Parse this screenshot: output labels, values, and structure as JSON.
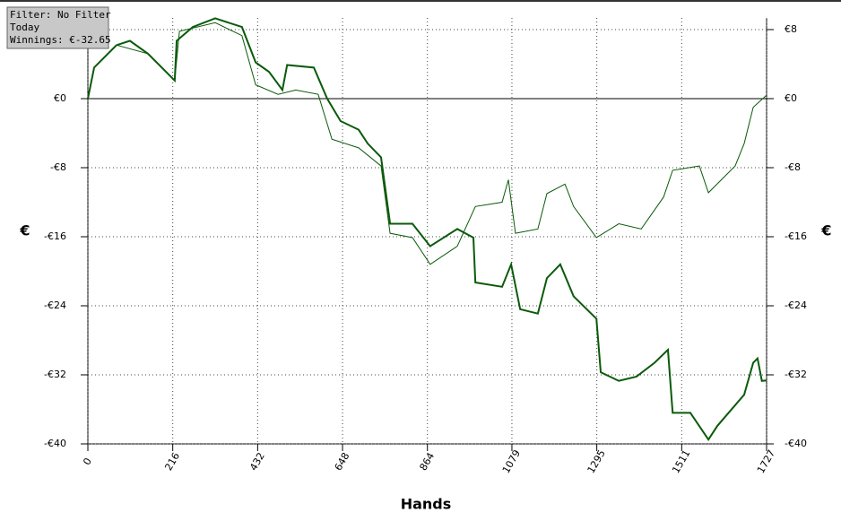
{
  "chart_data": {
    "type": "line",
    "info_box": [
      "Filter: No Filter",
      "Today",
      "Winnings: €-32.65"
    ],
    "xlabel": "Hands",
    "ylabel": "€",
    "xlim": [
      0,
      1727
    ],
    "xticks": [
      0,
      216,
      432,
      648,
      864,
      1079,
      1295,
      1511,
      1727
    ],
    "ylim": [
      -40,
      9.35
    ],
    "yticks": [
      {
        "value": -40,
        "label": "-€40"
      },
      {
        "value": -32,
        "label": "-€32"
      },
      {
        "value": -24,
        "label": "-€24"
      },
      {
        "value": -16,
        "label": "-€16"
      },
      {
        "value": -8,
        "label": "-€8"
      },
      {
        "value": 0,
        "label": "€0"
      },
      {
        "value": 8,
        "label": "€8"
      }
    ],
    "grid": true,
    "series": [
      {
        "color": "#0a5a0a",
        "width": 2,
        "x": [
          0,
          16,
          73,
          107,
          153,
          221,
          226,
          267,
          324,
          392,
          427,
          461,
          495,
          507,
          575,
          609,
          643,
          689,
          712,
          746,
          769,
          826,
          871,
          940,
          981,
          986,
          1054,
          1077,
          1100,
          1145,
          1168,
          1202,
          1236,
          1294,
          1305,
          1351,
          1396,
          1442,
          1476,
          1488,
          1533,
          1579,
          1602,
          1670,
          1693,
          1704,
          1715,
          1727
        ],
        "values": [
          0,
          3.6,
          6.2,
          6.7,
          5.2,
          2.1,
          6.7,
          8.3,
          9.3,
          8.3,
          4.2,
          3.1,
          1.0,
          3.9,
          3.6,
          0,
          -2.6,
          -3.6,
          -5.2,
          -6.8,
          -14.5,
          -14.5,
          -17.1,
          -15.1,
          -16.1,
          -21.3,
          -21.8,
          -19.2,
          -24.4,
          -24.9,
          -20.8,
          -19.2,
          -22.9,
          -25.5,
          -31.7,
          -32.7,
          -32.2,
          -30.6,
          -29.1,
          -36.4,
          -36.4,
          -39.5,
          -37.9,
          -34.3,
          -30.6,
          -30.1,
          -32.7,
          -32.65
        ]
      },
      {
        "color": "#0a5a0a",
        "width": 1,
        "x": [
          0,
          16,
          73,
          153,
          221,
          233,
          324,
          392,
          427,
          484,
          529,
          586,
          621,
          689,
          746,
          769,
          826,
          871,
          940,
          986,
          1054,
          1070,
          1088,
          1145,
          1168,
          1214,
          1236,
          1294,
          1351,
          1408,
          1465,
          1488,
          1556,
          1579,
          1647,
          1670,
          1693,
          1727
        ],
        "values": [
          0,
          3.6,
          6.2,
          5.2,
          2.1,
          7.8,
          8.8,
          7.3,
          1.6,
          0.5,
          1.0,
          0.5,
          -4.7,
          -5.7,
          -7.8,
          -15.6,
          -16.1,
          -19.2,
          -17.1,
          -12.5,
          -12.0,
          -9.4,
          -15.6,
          -15.1,
          -11.0,
          -9.9,
          -12.5,
          -16.1,
          -14.5,
          -15.1,
          -11.4,
          -8.3,
          -7.8,
          -10.9,
          -7.8,
          -5.2,
          -1.0,
          0.4
        ]
      }
    ]
  }
}
